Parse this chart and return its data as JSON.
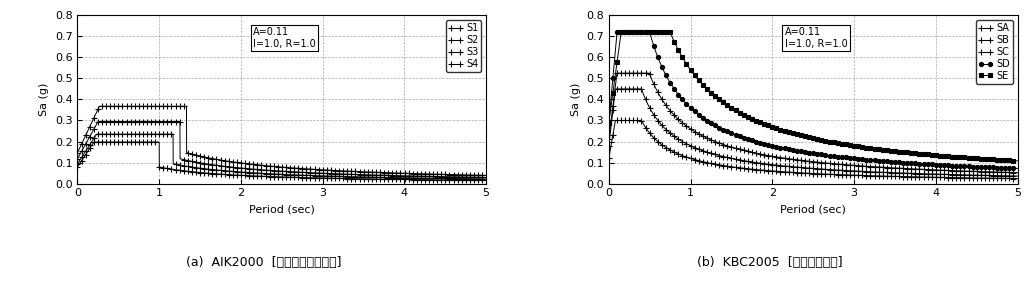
{
  "fig_width": 10.33,
  "fig_height": 3.06,
  "dpi": 100,
  "caption_a": "(a)  AIK2000  [허용응력설계수준]",
  "caption_b": "(b)  KBC2005  [강도설계수준]",
  "annotation_a": "A=0.11\nI=1.0, R=1.0",
  "annotation_b": "A=0.11\nI=1.0, R=1.0",
  "xlabel": "Period (sec)",
  "ylabel": "Sa (g)",
  "xlim": [
    0,
    5
  ],
  "ylim_a": [
    0,
    0.8
  ],
  "ylim_b": [
    0,
    0.8
  ],
  "yticks": [
    0,
    0.1,
    0.2,
    0.3,
    0.4,
    0.5,
    0.6,
    0.7,
    0.8
  ],
  "xticks": [
    0,
    1,
    2,
    3,
    4,
    5
  ],
  "legend_a": [
    "S1",
    "S2",
    "S3",
    "S4"
  ],
  "legend_b": [
    "SA",
    "SB",
    "SC",
    "SD",
    "SE"
  ],
  "aik_params": [
    {
      "Ca": 0.079,
      "Cv": 0.079
    },
    {
      "Ca": 0.094,
      "Cv": 0.11
    },
    {
      "Ca": 0.118,
      "Cv": 0.148
    },
    {
      "Ca": 0.147,
      "Cv": 0.196
    }
  ],
  "kbc_params": [
    {
      "Sds": 0.3,
      "Sd1": 0.12
    },
    {
      "Sds": 0.45,
      "Sd1": 0.18
    },
    {
      "Sds": 0.525,
      "Sd1": 0.26
    },
    {
      "Sds": 0.72,
      "Sd1": 0.36
    },
    {
      "Sds": 0.72,
      "Sd1": 0.54
    }
  ],
  "grid_color": "#aaaaaa",
  "grid_style": "--",
  "font_size_tick": 8,
  "font_size_label": 8,
  "font_size_legend": 7,
  "font_size_annot": 7,
  "font_size_caption": 9
}
